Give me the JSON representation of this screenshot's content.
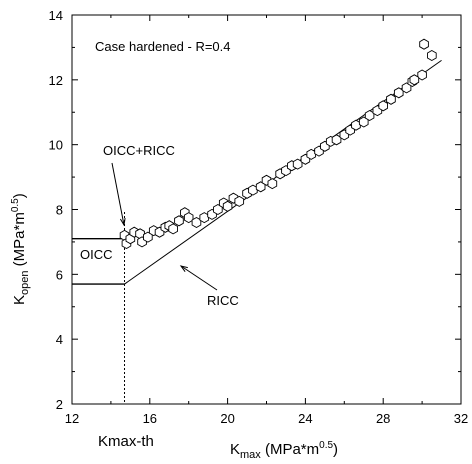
{
  "chart_data": {
    "type": "scatter",
    "title": "",
    "annotation_title": "Case hardened - R=0.4",
    "xlim": [
      12,
      32
    ],
    "ylim": [
      2,
      14
    ],
    "xticks": [
      12,
      16,
      20,
      24,
      28,
      32
    ],
    "yticks": [
      2,
      4,
      6,
      8,
      10,
      12,
      14
    ],
    "grid": false,
    "axis_labels": {
      "x": {
        "main": "K",
        "sub": "max",
        "unit": " (MPa*m",
        "sup": "0.5",
        "close": ")"
      },
      "y": {
        "main": "K",
        "sub": "open",
        "unit": " (MPa*m",
        "sup": "0.5",
        "close": ")"
      }
    },
    "series": [
      {
        "marker": "hexagon",
        "points": [
          [
            14.7,
            7.2
          ],
          [
            14.8,
            6.95
          ],
          [
            15.0,
            7.1
          ],
          [
            15.2,
            7.3
          ],
          [
            15.5,
            7.25
          ],
          [
            15.6,
            7.0
          ],
          [
            15.9,
            7.15
          ],
          [
            16.2,
            7.35
          ],
          [
            16.5,
            7.3
          ],
          [
            16.8,
            7.45
          ],
          [
            17.0,
            7.5
          ],
          [
            17.2,
            7.4
          ],
          [
            17.5,
            7.65
          ],
          [
            17.8,
            7.9
          ],
          [
            18.0,
            7.75
          ],
          [
            18.4,
            7.6
          ],
          [
            18.8,
            7.75
          ],
          [
            19.2,
            7.85
          ],
          [
            19.5,
            8.0
          ],
          [
            19.8,
            8.2
          ],
          [
            20.0,
            8.1
          ],
          [
            20.3,
            8.35
          ],
          [
            20.6,
            8.25
          ],
          [
            21.0,
            8.5
          ],
          [
            21.3,
            8.6
          ],
          [
            21.7,
            8.7
          ],
          [
            22.0,
            8.9
          ],
          [
            22.3,
            8.8
          ],
          [
            22.7,
            9.1
          ],
          [
            23.0,
            9.2
          ],
          [
            23.3,
            9.35
          ],
          [
            23.6,
            9.4
          ],
          [
            24.0,
            9.55
          ],
          [
            24.3,
            9.7
          ],
          [
            24.7,
            9.8
          ],
          [
            25.0,
            9.95
          ],
          [
            25.3,
            10.1
          ],
          [
            25.6,
            10.15
          ],
          [
            26.0,
            10.3
          ],
          [
            26.3,
            10.45
          ],
          [
            26.6,
            10.6
          ],
          [
            27.0,
            10.7
          ],
          [
            27.3,
            10.9
          ],
          [
            27.7,
            11.05
          ],
          [
            28.0,
            11.2
          ],
          [
            28.4,
            11.4
          ],
          [
            28.8,
            11.6
          ],
          [
            29.2,
            11.75
          ],
          [
            29.5,
            11.95
          ],
          [
            30.0,
            12.15
          ],
          [
            29.6,
            12.0
          ],
          [
            30.5,
            12.75
          ],
          [
            30.1,
            13.1
          ]
        ]
      }
    ],
    "ricc_line": {
      "x": [
        14.7,
        31.0
      ],
      "y": [
        5.7,
        12.6
      ]
    },
    "kmax_th": {
      "x": 14.7,
      "label": "Kmax-th"
    },
    "oicc_bracket": {
      "y_top": 7.1,
      "y_bottom": 5.7,
      "label": "OICC"
    },
    "annotations": {
      "oicc_ricc": "OICC+RICC",
      "ricc": "RICC"
    }
  }
}
